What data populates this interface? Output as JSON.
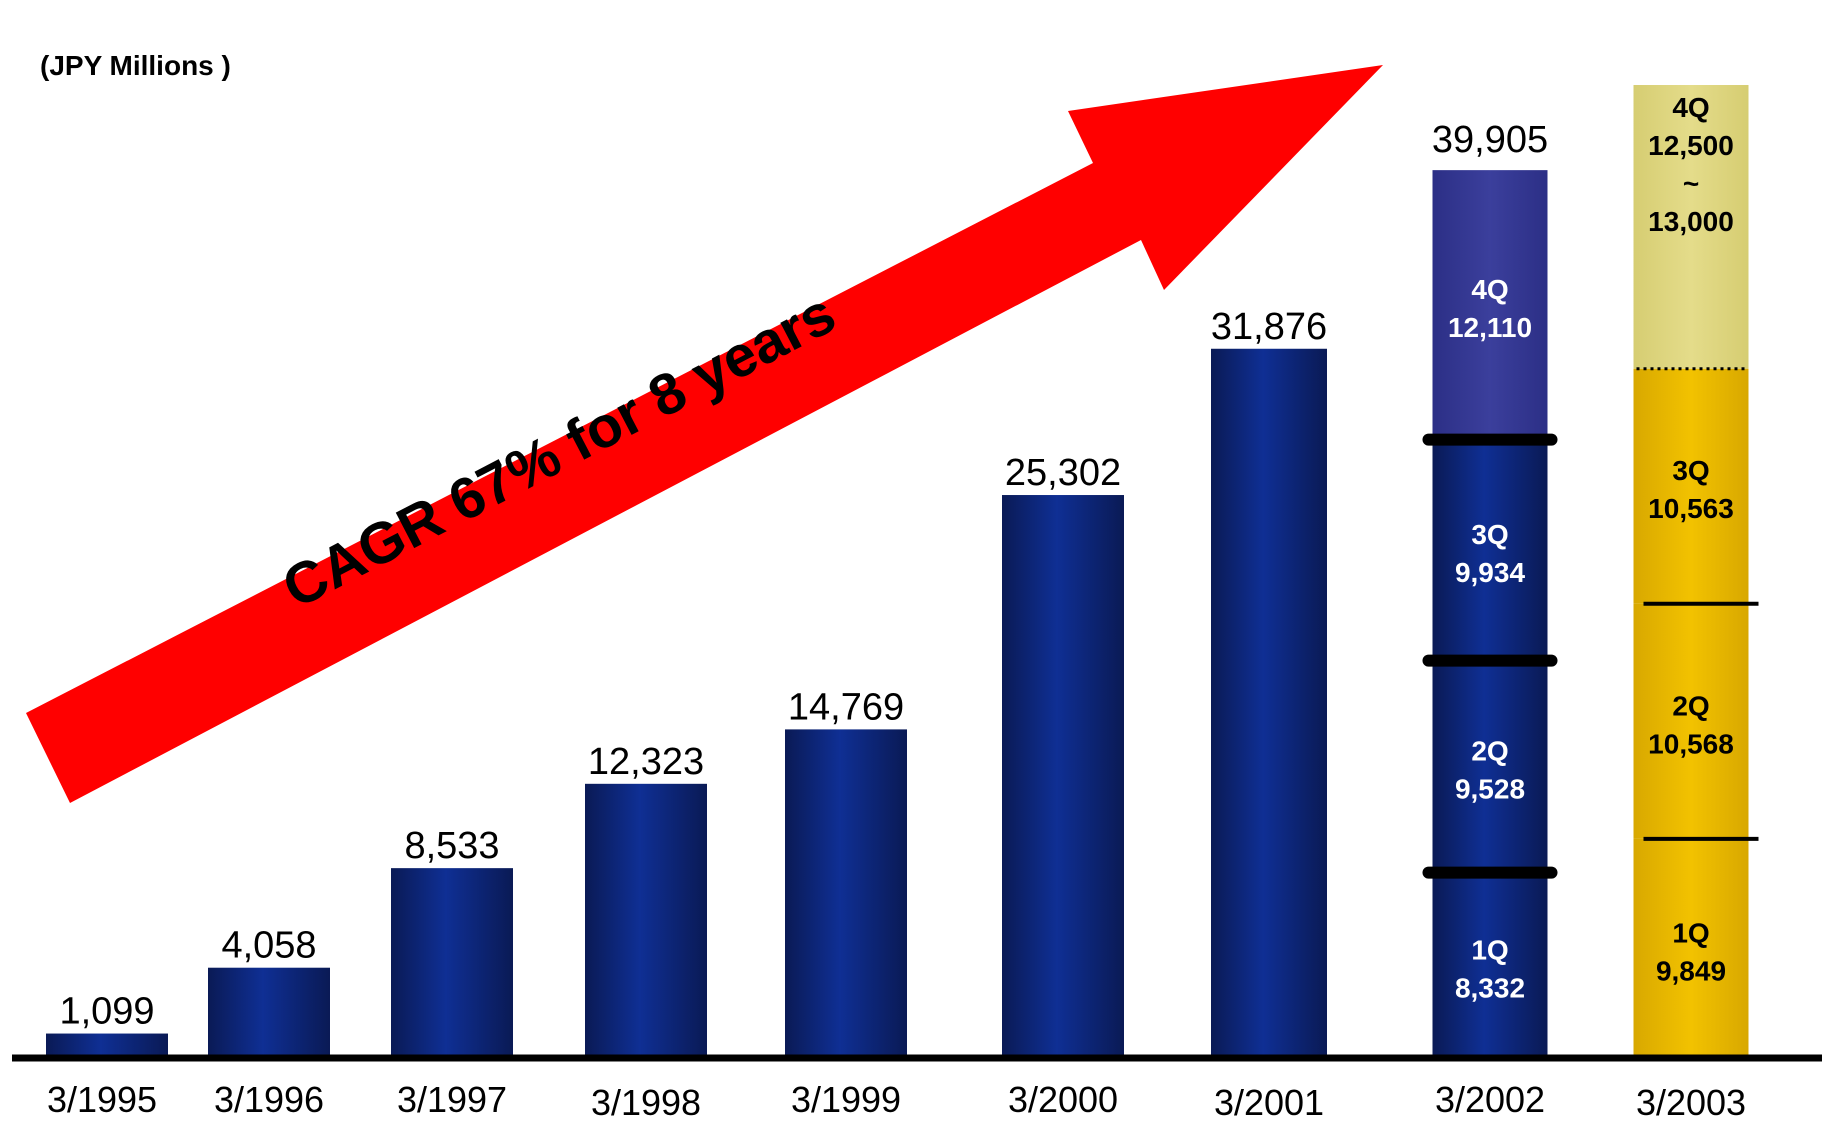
{
  "unit_label": "(JPY Millions )",
  "arrow_text": "CAGR 67% for 8 years",
  "colors": {
    "bar_blue_dark": "#0a1a55",
    "bar_blue_mid": "#0f2f94",
    "bar_q4_2002": "#3b3f9c",
    "bar_gold": "#f2c200",
    "bar_gold_light": "#e4dc8a",
    "arrow": "#ff0000",
    "axis": "#000000"
  },
  "chart_data": {
    "type": "bar",
    "categories": [
      "3/1995",
      "3/1996",
      "3/1997",
      "3/1998",
      "3/1999",
      "3/2000",
      "3/2001",
      "3/2002",
      "3/2003"
    ],
    "values": [
      1099,
      4058,
      8533,
      12323,
      14769,
      25302,
      31876,
      39905,
      null
    ],
    "value_labels": [
      "1,099",
      "4,058",
      "8,533",
      "12,323",
      "14,769",
      "25,302",
      "31,876",
      "39,905",
      ""
    ],
    "stacked": {
      "3/2002": [
        {
          "label": "1Q",
          "value": 8332,
          "text": "8,332"
        },
        {
          "label": "2Q",
          "value": 9528,
          "text": "9,528"
        },
        {
          "label": "3Q",
          "value": 9934,
          "text": "9,934"
        },
        {
          "label": "4Q",
          "value": 12110,
          "text": "12,110"
        }
      ],
      "3/2003": [
        {
          "label": "1Q",
          "value": 9849,
          "text": "9,849"
        },
        {
          "label": "2Q",
          "value": 10568,
          "text": "10,568"
        },
        {
          "label": "3Q",
          "value": 10563,
          "text": "10,563"
        },
        {
          "label": "4Q",
          "value": 12750,
          "text_lines": [
            "12,500",
            "~",
            "13,000"
          ],
          "range": [
            12500,
            13000
          ]
        }
      ]
    },
    "ylim": [
      0,
      44000
    ],
    "annotation": "CAGR 67% for 8 years"
  }
}
